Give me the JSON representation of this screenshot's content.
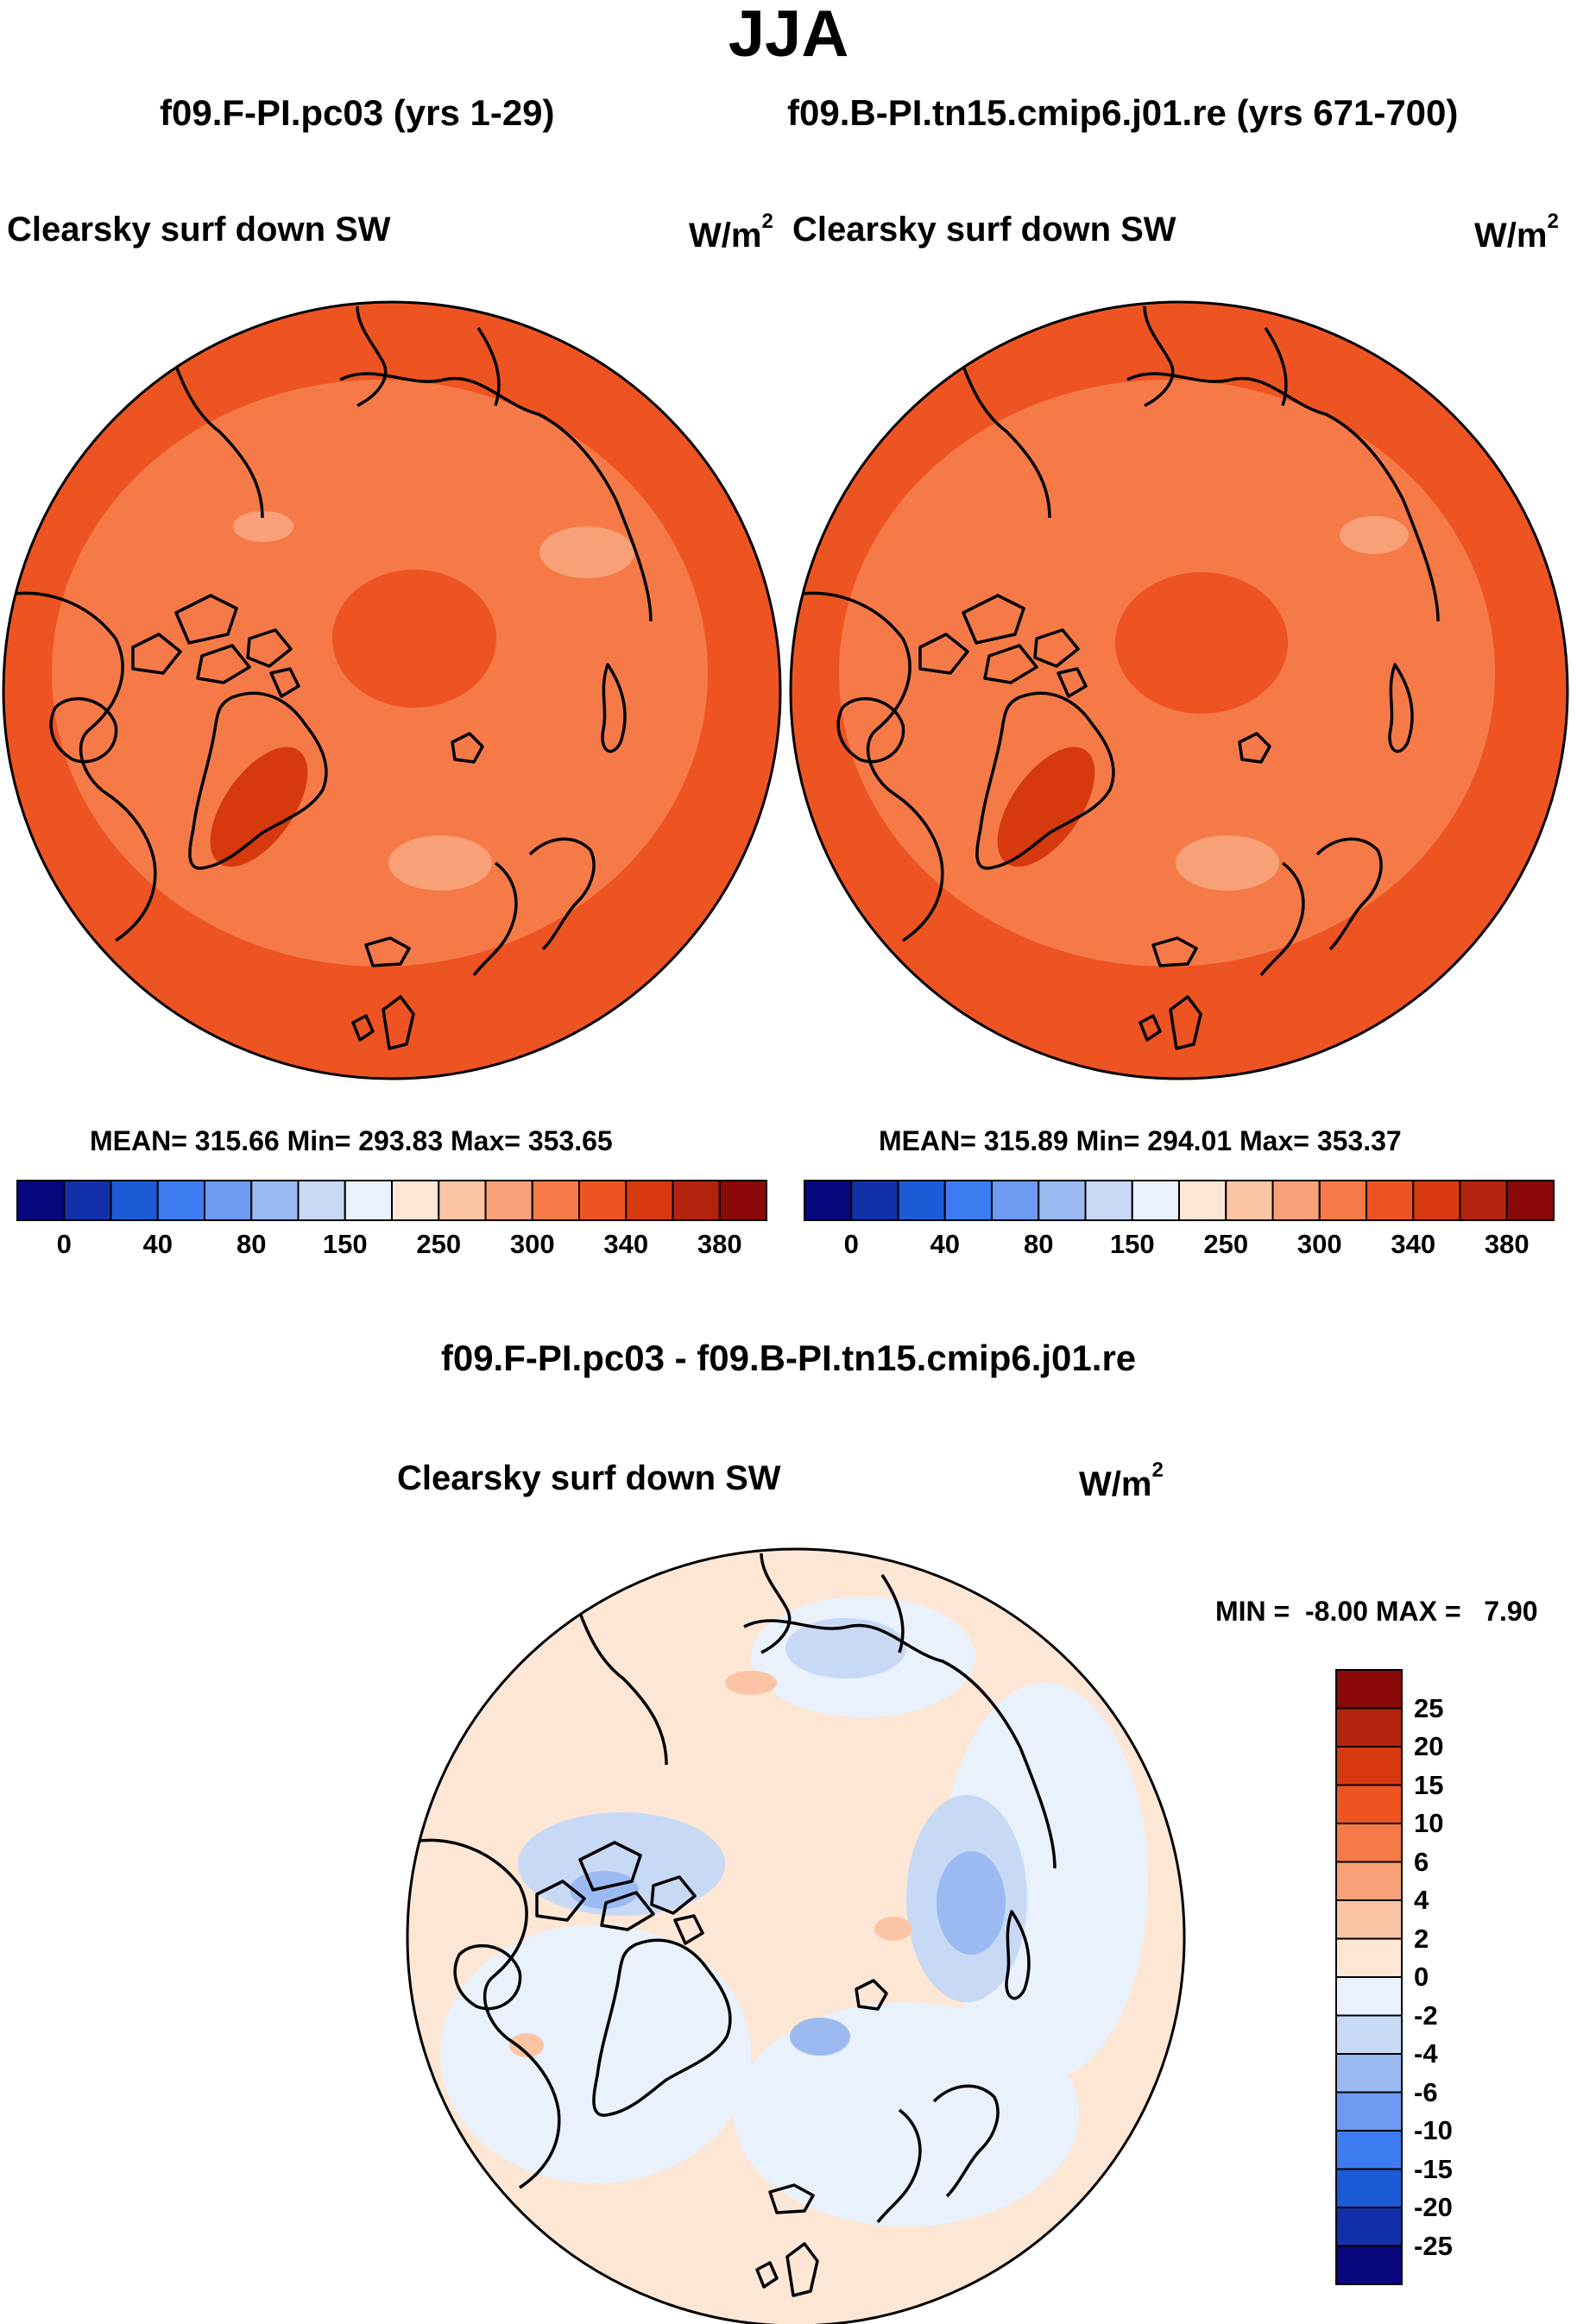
{
  "season": "JJA",
  "panels": [
    {
      "case_title": "f09.F-PI.pc03 (yrs 1-29)",
      "variable": "Clearsky surf down SW",
      "units_base": "W/m",
      "units_exp": "2",
      "stats": {
        "mean": "315.66",
        "min": "293.83",
        "max": "353.65"
      },
      "stats_text": "MEAN= 315.66  Min= 293.83  Max= 353.65"
    },
    {
      "case_title": "f09.B-PI.tn15.cmip6.j01.re (yrs 671-700)",
      "variable": "Clearsky surf down SW",
      "units_base": "W/m",
      "units_exp": "2",
      "stats": {
        "mean": "315.89",
        "min": "294.01",
        "max": "353.37"
      },
      "stats_text": "MEAN= 315.89  Min= 294.01  Max= 353.37"
    }
  ],
  "abs_colorbar": {
    "colors": [
      "#08087e",
      "#1231a8",
      "#1d5ad6",
      "#3d7cf0",
      "#6d9af0",
      "#9cbaf2",
      "#c8d9f6",
      "#e8f1fc",
      "#fde6d4",
      "#fbc4a4",
      "#f8a078",
      "#f57a48",
      "#ee5422",
      "#d7390e",
      "#b2240e",
      "#8a0a0a"
    ],
    "labels": [
      "0",
      "40",
      "80",
      "150",
      "250",
      "300",
      "340",
      "380"
    ]
  },
  "diff": {
    "title": "f09.F-PI.pc03 - f09.B-PI.tn15.cmip6.j01.re",
    "variable": "Clearsky surf down SW",
    "units_base": "W/m",
    "units_exp": "2",
    "min_label": "MIN =",
    "min_value": "-8.00",
    "max_label": "MAX =",
    "max_value": "7.90",
    "colorbar": {
      "colors_top_to_bottom": [
        "#8a0a0a",
        "#b2240e",
        "#d7390e",
        "#ee5422",
        "#f57a48",
        "#f8a078",
        "#fbc4a4",
        "#fde6d4",
        "#e8f1fc",
        "#c8d9f6",
        "#9cbaf2",
        "#6d9af0",
        "#3d7cf0",
        "#1d5ad6",
        "#1231a8",
        "#08087e"
      ],
      "labels_top_to_bottom": [
        "25",
        "20",
        "15",
        "10",
        "6",
        "4",
        "2",
        "0",
        "-2",
        "-4",
        "-6",
        "-10",
        "-15",
        "-20",
        "-25"
      ]
    }
  }
}
